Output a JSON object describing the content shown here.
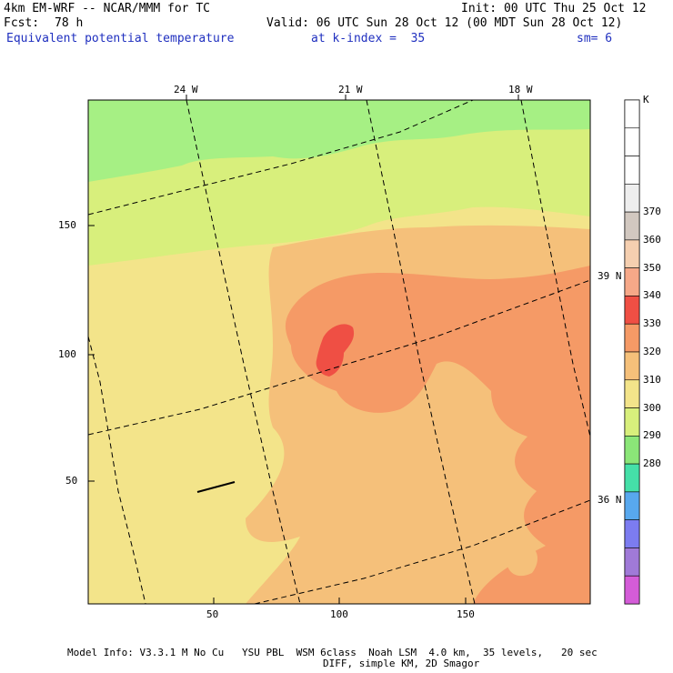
{
  "header": {
    "model": "4km EM-WRF -- NCAR/MMM for TC",
    "init": "Init: 00 UTC Thu 25 Oct 12",
    "fcst_label": "Fcst:",
    "fcst_value": "78 h",
    "valid": "Valid: 06 UTC Sun 28 Oct 12 (00 MDT Sun 28 Oct 12)",
    "field": "Equivalent potential temperature",
    "level": "at k-index =  35",
    "smooth": "sm= 6"
  },
  "map": {
    "top_lon_labels": [
      "24 W",
      "21 W",
      "18 W"
    ],
    "right_lat_labels": [
      "39 N",
      "36 N"
    ],
    "y_ticks": [
      "150",
      "100",
      "50"
    ],
    "x_ticks": [
      "50",
      "100",
      "150"
    ]
  },
  "colorbar": {
    "unit": "K",
    "labels": [
      "370",
      "360",
      "350",
      "340",
      "330",
      "320",
      "310",
      "300",
      "290",
      "280"
    ],
    "colors": [
      "#ffffff",
      "#ffffff",
      "#ffffff",
      "#eeeeee",
      "#d2c8c0",
      "#f5cfb0",
      "#f6a888",
      "#ef4f44",
      "#f59a66",
      "#f5c07a",
      "#f3e48a",
      "#d8ef7c",
      "#8be678",
      "#45e0a8",
      "#58a8ee",
      "#7c7cf0",
      "#a07ad8",
      "#d45cd8"
    ]
  },
  "footer": {
    "line1": "Model Info: V3.3.1 M No Cu   YSU PBL  WSM 6class  Noah LSM  4.0 km,  35 levels,   20 sec",
    "line2": "DIFF, simple KM, 2D Smagor"
  }
}
